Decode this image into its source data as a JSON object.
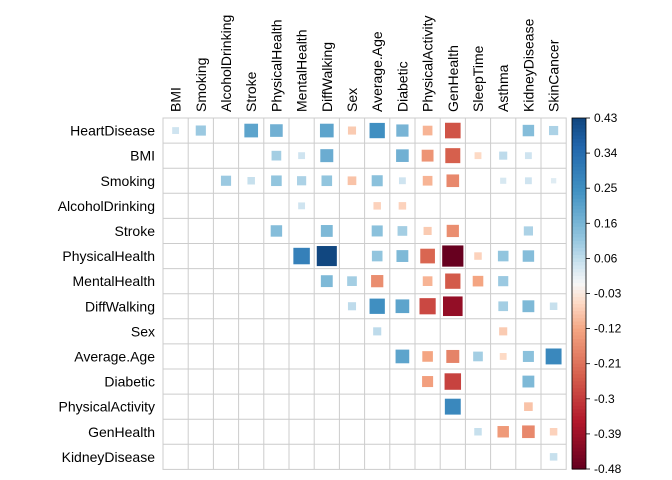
{
  "chart_data": {
    "type": "heatmap",
    "variables_rows": [
      "HeartDisease",
      "BMI",
      "Smoking",
      "AlcoholDrinking",
      "Stroke",
      "PhysicalHealth",
      "MentalHealth",
      "DiffWalking",
      "Sex",
      "Average.Age",
      "Diabetic",
      "PhysicalActivity",
      "GenHealth",
      "KidneyDisease"
    ],
    "variables_cols": [
      "BMI",
      "Smoking",
      "AlcoholDrinking",
      "Stroke",
      "PhysicalHealth",
      "MentalHealth",
      "DiffWalking",
      "Sex",
      "Average.Age",
      "Diabetic",
      "PhysicalActivity",
      "GenHealth",
      "SleepTime",
      "Asthma",
      "KidneyDisease",
      "SkinCancer"
    ],
    "matrix": [
      [
        0.05,
        0.11,
        0,
        0.2,
        0.17,
        0,
        0.2,
        -0.07,
        0.25,
        0.16,
        -0.1,
        -0.26,
        0,
        0,
        0.14,
        0.09
      ],
      [
        null,
        0,
        0,
        0,
        0.1,
        0.05,
        0.18,
        0,
        0,
        0.17,
        -0.15,
        -0.24,
        -0.05,
        0.07,
        0.05,
        0
      ],
      [
        null,
        null,
        0.11,
        0.06,
        0.12,
        0.09,
        0.12,
        -0.08,
        0.13,
        0.05,
        -0.1,
        -0.17,
        0,
        0.04,
        0.05,
        0.03
      ],
      [
        null,
        null,
        null,
        0,
        0,
        0.05,
        0,
        0,
        -0.06,
        -0.06,
        0,
        0,
        0,
        0,
        0,
        0
      ],
      [
        null,
        null,
        null,
        null,
        0.14,
        0,
        0.15,
        0,
        0.13,
        0.1,
        -0.07,
        -0.16,
        0,
        0,
        0.09,
        0
      ],
      [
        null,
        null,
        null,
        null,
        null,
        0.29,
        0.43,
        0,
        0.12,
        0.15,
        -0.23,
        -0.48,
        -0.06,
        0.12,
        0.14,
        0
      ],
      [
        null,
        null,
        null,
        null,
        null,
        null,
        0.15,
        0.1,
        -0.16,
        0,
        -0.1,
        -0.25,
        -0.12,
        0.11,
        0,
        0
      ],
      [
        null,
        null,
        null,
        null,
        null,
        null,
        null,
        0.07,
        0.25,
        0.2,
        -0.28,
        -0.41,
        0,
        0.1,
        0.15,
        0.06
      ],
      [
        null,
        null,
        null,
        null,
        null,
        null,
        null,
        null,
        0.07,
        0,
        0,
        0,
        0,
        -0.07,
        0,
        0
      ],
      [
        null,
        null,
        null,
        null,
        null,
        null,
        null,
        null,
        null,
        0.2,
        -0.12,
        -0.18,
        0.1,
        -0.05,
        0.13,
        0.27
      ],
      [
        null,
        null,
        null,
        null,
        null,
        null,
        null,
        null,
        null,
        null,
        -0.13,
        -0.29,
        0,
        0,
        0.15,
        0
      ],
      [
        null,
        null,
        null,
        null,
        null,
        null,
        null,
        null,
        null,
        null,
        null,
        0.27,
        0,
        0,
        -0.08,
        0
      ],
      [
        null,
        null,
        null,
        null,
        null,
        null,
        null,
        null,
        null,
        null,
        null,
        null,
        0.06,
        -0.14,
        -0.17,
        -0.06
      ],
      [
        null,
        null,
        null,
        null,
        null,
        null,
        null,
        null,
        null,
        null,
        null,
        null,
        null,
        0,
        0,
        0.06
      ]
    ],
    "color_scale": {
      "min": -0.48,
      "max": 0.43,
      "ticks": [
        "0.43",
        "0.34",
        "0.25",
        "0.16",
        "0.06",
        "-0.03",
        "-0.12",
        "-0.21",
        "-0.3",
        "-0.39",
        "-0.48"
      ],
      "negative_color": "#67001f",
      "neutral_color": "#f7f7f7",
      "positive_color": "#053061"
    },
    "grid": true,
    "legend_position": "right"
  }
}
